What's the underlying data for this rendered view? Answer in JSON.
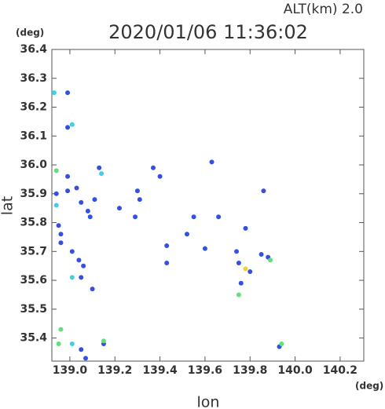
{
  "chart_data": {
    "type": "scatter",
    "title": "2020/01/06 11:36:02",
    "subtitle": "ALT(km) 2.0",
    "y_unit": "(deg)",
    "x_unit": "(deg)",
    "xlabel": "lon",
    "ylabel": "lat",
    "xlim": [
      138.92,
      140.305
    ],
    "ylim": [
      35.32,
      36.4
    ],
    "xticks": [
      {
        "value": 139,
        "label": "139.0"
      },
      139.2,
      139.4,
      139.6,
      139.8,
      {
        "value": 140,
        "label": "140.0"
      },
      140.2
    ],
    "yticks": [
      35.4,
      35.5,
      35.6,
      35.7,
      35.8,
      35.9,
      {
        "value": 36,
        "label": "36.0"
      },
      36.1,
      36.2,
      36.3,
      36.4
    ],
    "grid": false,
    "series": [
      {
        "color": "#3550e0",
        "x": [
          138.99,
          138.99,
          138.99,
          138.99,
          138.94,
          139.03,
          139.05,
          139.08,
          139.09,
          139.11,
          138.95,
          138.96,
          138.96,
          139.01,
          139.04,
          139.06,
          139.1,
          139.05,
          139.05,
          139.07,
          139.15,
          139.3,
          139.31,
          139.13,
          139.37,
          139.4,
          139.63,
          139.86,
          139.55,
          139.66,
          139.78,
          139.22,
          139.52,
          139.6,
          139.43,
          139.74,
          139.75,
          139.8,
          139.85,
          139.88,
          139.76,
          139.93,
          139.29,
          139.43
        ],
        "y": [
          36.25,
          36.13,
          35.96,
          35.91,
          35.9,
          35.92,
          35.87,
          35.84,
          35.82,
          35.88,
          35.79,
          35.76,
          35.73,
          35.7,
          35.67,
          35.65,
          35.57,
          35.61,
          35.36,
          35.33,
          35.38,
          35.91,
          35.88,
          35.99,
          35.99,
          35.96,
          36.01,
          35.91,
          35.82,
          35.82,
          35.78,
          35.85,
          35.76,
          35.71,
          35.72,
          35.7,
          35.66,
          35.63,
          35.69,
          35.68,
          35.59,
          35.37,
          35.82,
          35.66
        ]
      },
      {
        "color": "#3ccfe8",
        "x": [
          138.93,
          139.01,
          138.94,
          139.01,
          139.01,
          139.14
        ],
        "y": [
          36.25,
          36.14,
          35.86,
          35.61,
          35.38,
          35.97
        ]
      },
      {
        "color": "#5ee07a",
        "x": [
          138.94,
          138.96,
          138.95,
          139.15,
          139.89,
          139.75,
          139.94
        ],
        "y": [
          35.98,
          35.43,
          35.38,
          35.39,
          35.67,
          35.55,
          35.38
        ]
      },
      {
        "color": "#f0d03a",
        "x": [
          139.78
        ],
        "y": [
          35.64
        ]
      }
    ]
  }
}
